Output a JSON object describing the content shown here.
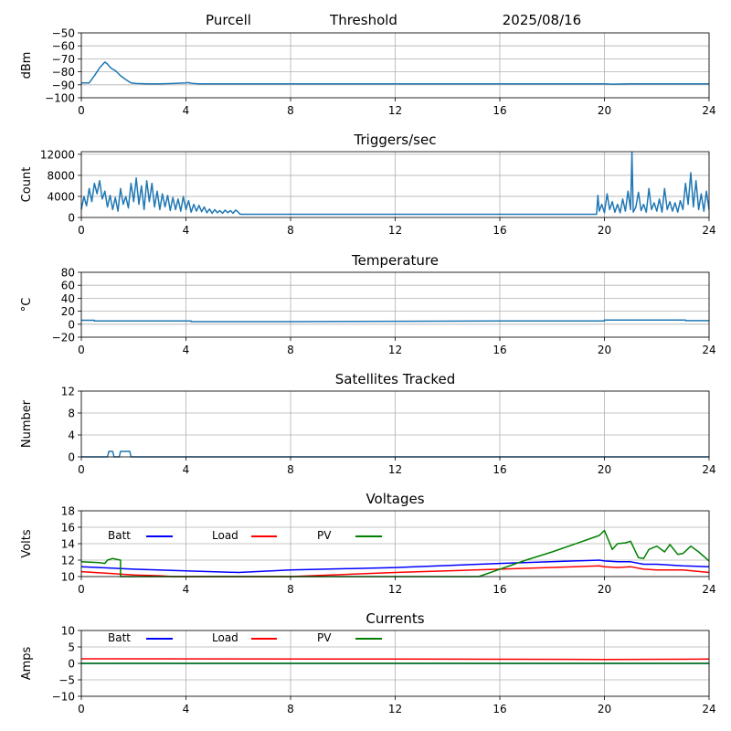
{
  "header": {
    "station": "Purcell",
    "mode": "Threshold",
    "date": "2025/08/16"
  },
  "legend": {
    "batt": {
      "label": "Batt",
      "color": "#0000ff"
    },
    "load": {
      "label": "Load",
      "color": "#ff0000"
    },
    "pv": {
      "label": "PV",
      "color": "#008000"
    }
  },
  "chart_data": [
    {
      "id": "signal",
      "type": "line",
      "title": "",
      "xlabel": "",
      "ylabel": "dBm",
      "xlim": [
        0,
        24
      ],
      "ylim": [
        -100,
        -50
      ],
      "xticks": [
        0,
        4,
        8,
        12,
        16,
        20,
        24
      ],
      "yticks": [
        -100,
        -90,
        -80,
        -70,
        -60,
        -50
      ],
      "grid": true,
      "series": [
        {
          "color": "#1f77b4",
          "x": [
            0,
            0.3,
            0.5,
            0.7,
            0.9,
            1.0,
            1.1,
            1.2,
            1.3,
            1.4,
            1.5,
            1.7,
            1.9,
            2.1,
            2.5,
            3.0,
            3.5,
            4.0,
            4.1,
            4.2,
            4.3,
            4.5,
            5.0,
            6.0,
            8.0,
            12.0,
            16.0,
            19.8,
            20.0,
            20.3,
            21.0,
            22.0,
            23.0,
            24.0
          ],
          "y": [
            -88.5,
            -88.5,
            -83,
            -77,
            -72.5,
            -74,
            -76.5,
            -78,
            -79,
            -81,
            -83,
            -86,
            -88.5,
            -89,
            -89.3,
            -89.3,
            -89,
            -88.5,
            -88.3,
            -88.8,
            -89,
            -89.3,
            -89.3,
            -89.2,
            -89.2,
            -89.2,
            -89.2,
            -89.2,
            -89.3,
            -89.5,
            -89.2,
            -89.3,
            -89.2,
            -89.2
          ]
        }
      ]
    },
    {
      "id": "triggers",
      "type": "line",
      "title": "Triggers/sec",
      "xlabel": "",
      "ylabel": "Count",
      "xlim": [
        0,
        24
      ],
      "ylim": [
        0,
        12500
      ],
      "xticks": [
        0,
        4,
        8,
        12,
        16,
        20,
        24
      ],
      "yticks": [
        0,
        4000,
        8000,
        12000
      ],
      "grid": true,
      "series": [
        {
          "color": "#1f77b4",
          "x": [
            0,
            0.1,
            0.2,
            0.3,
            0.4,
            0.5,
            0.6,
            0.7,
            0.8,
            0.9,
            1.0,
            1.1,
            1.2,
            1.3,
            1.4,
            1.5,
            1.6,
            1.7,
            1.8,
            1.9,
            2.0,
            2.1,
            2.2,
            2.3,
            2.4,
            2.5,
            2.6,
            2.7,
            2.8,
            2.9,
            3.0,
            3.1,
            3.2,
            3.3,
            3.4,
            3.5,
            3.6,
            3.7,
            3.8,
            3.9,
            4.0,
            4.1,
            4.2,
            4.3,
            4.4,
            4.5,
            4.6,
            4.7,
            4.8,
            4.9,
            5.0,
            5.1,
            5.2,
            5.3,
            5.4,
            5.5,
            5.6,
            5.7,
            5.8,
            5.9,
            6.0,
            6.05,
            6.1,
            8.0,
            12.0,
            16.0,
            19.7,
            19.75,
            19.8,
            19.9,
            20.0,
            20.1,
            20.2,
            20.3,
            20.4,
            20.5,
            20.6,
            20.7,
            20.8,
            20.9,
            21.0,
            21.05,
            21.1,
            21.2,
            21.3,
            21.4,
            21.5,
            21.6,
            21.7,
            21.8,
            21.9,
            22.0,
            22.1,
            22.2,
            22.3,
            22.4,
            22.5,
            22.6,
            22.7,
            22.8,
            22.9,
            23.0,
            23.1,
            23.2,
            23.3,
            23.4,
            23.5,
            23.6,
            23.7,
            23.8,
            23.9,
            24.0
          ],
          "y": [
            1500,
            4000,
            2200,
            5500,
            3000,
            6500,
            4500,
            7000,
            3500,
            5000,
            2000,
            4200,
            1500,
            3800,
            1200,
            5500,
            2500,
            4000,
            1800,
            6500,
            3000,
            7500,
            2500,
            6000,
            1500,
            7000,
            3000,
            6500,
            2000,
            5000,
            1500,
            4500,
            2000,
            4200,
            1300,
            3800,
            1500,
            3500,
            1200,
            4000,
            1500,
            3200,
            1000,
            2500,
            1200,
            2300,
            1100,
            2000,
            900,
            1600,
            800,
            1500,
            900,
            1300,
            800,
            1400,
            900,
            1300,
            800,
            1400,
            1000,
            700,
            600,
            600,
            600,
            600,
            600,
            4200,
            1200,
            2500,
            900,
            4500,
            1500,
            3000,
            1000,
            2500,
            900,
            3500,
            1200,
            5000,
            1500,
            12400,
            1000,
            2000,
            4800,
            1300,
            2500,
            1000,
            5500,
            1500,
            2800,
            1200,
            3500,
            1000,
            5500,
            1500,
            3000,
            1200,
            2800,
            1000,
            3200,
            1500,
            6500,
            2500,
            8500,
            2000,
            7000,
            1500,
            4500,
            1200,
            5000,
            1500
          ]
        }
      ]
    },
    {
      "id": "temperature",
      "type": "line",
      "title": "Temperature",
      "xlabel": "",
      "ylabel": "°C",
      "xlim": [
        0,
        24
      ],
      "ylim": [
        -20,
        80
      ],
      "xticks": [
        0,
        4,
        8,
        12,
        16,
        20,
        24
      ],
      "yticks": [
        -20,
        0,
        20,
        40,
        60,
        80
      ],
      "grid": true,
      "series": [
        {
          "color": "#1f77b4",
          "x": [
            0,
            0.5,
            0.5,
            4.2,
            4.2,
            8,
            12,
            16,
            20,
            20,
            23.1,
            23.1,
            24
          ],
          "y": [
            6,
            6,
            5,
            5,
            4,
            4,
            4.5,
            5,
            5,
            6.5,
            6.5,
            5.5,
            5.5
          ]
        }
      ]
    },
    {
      "id": "satellites",
      "type": "line",
      "title": "Satellites Tracked",
      "xlabel": "",
      "ylabel": "Number",
      "xlim": [
        0,
        24
      ],
      "ylim": [
        0,
        12
      ],
      "xticks": [
        0,
        4,
        8,
        12,
        16,
        20,
        24
      ],
      "yticks": [
        0,
        4,
        8,
        12
      ],
      "grid": true,
      "series": [
        {
          "color": "#1f77b4",
          "x": [
            0,
            1.0,
            1.05,
            1.2,
            1.25,
            1.45,
            1.5,
            1.85,
            1.9,
            24
          ],
          "y": [
            0,
            0,
            1,
            1,
            0,
            0,
            1,
            1,
            0,
            0
          ]
        }
      ]
    },
    {
      "id": "voltages",
      "type": "line",
      "title": "Voltages",
      "xlabel": "",
      "ylabel": "Volts",
      "xlim": [
        0,
        24
      ],
      "ylim": [
        10,
        18
      ],
      "xticks": [
        0,
        4,
        8,
        12,
        16,
        20,
        24
      ],
      "yticks": [
        10,
        12,
        14,
        16,
        18
      ],
      "grid": true,
      "series": [
        {
          "name": "Batt",
          "color": "#0000ff",
          "x": [
            0,
            2,
            4,
            6,
            8,
            12,
            16,
            19.8,
            20,
            20.5,
            21,
            21.5,
            22,
            23,
            24
          ],
          "y": [
            11.2,
            10.9,
            10.7,
            10.5,
            10.8,
            11.1,
            11.6,
            12.0,
            11.9,
            11.8,
            11.8,
            11.5,
            11.5,
            11.3,
            11.2
          ]
        },
        {
          "name": "Load",
          "color": "#ff0000",
          "x": [
            0,
            1,
            2,
            3,
            3.5,
            8,
            12,
            16,
            19.8,
            20,
            20.5,
            21,
            21.5,
            22,
            23,
            24
          ],
          "y": [
            10.6,
            10.4,
            10.2,
            10.1,
            10.0,
            10.0,
            10.5,
            10.9,
            11.3,
            11.2,
            11.1,
            11.2,
            10.9,
            10.8,
            10.8,
            10.5
          ]
        },
        {
          "name": "PV",
          "color": "#008000",
          "x": [
            0,
            0.7,
            0.9,
            1.0,
            1.2,
            1.5,
            1.5,
            15.2,
            16,
            17,
            18,
            19,
            19.8,
            20,
            20.3,
            20.5,
            20.8,
            21,
            21.3,
            21.5,
            21.7,
            22,
            22.3,
            22.5,
            22.8,
            23,
            23.3,
            23.6,
            24
          ],
          "y": [
            11.8,
            11.7,
            11.6,
            12.0,
            12.2,
            12.0,
            10.0,
            10.0,
            10.9,
            12.0,
            13.0,
            14.1,
            15.0,
            15.6,
            13.3,
            14.0,
            14.1,
            14.3,
            12.3,
            12.2,
            13.3,
            13.7,
            13.0,
            13.9,
            12.7,
            12.8,
            13.7,
            13.0,
            11.9
          ]
        }
      ]
    },
    {
      "id": "currents",
      "type": "line",
      "title": "Currents",
      "xlabel": "",
      "ylabel": "Amps",
      "xlim": [
        0,
        24
      ],
      "ylim": [
        -10,
        10
      ],
      "xticks": [
        0,
        4,
        8,
        12,
        16,
        20,
        24
      ],
      "yticks": [
        -10,
        -5,
        0,
        5,
        10
      ],
      "grid": true,
      "series": [
        {
          "name": "Batt",
          "color": "#0000ff",
          "x": [
            0,
            24
          ],
          "y": [
            0.0,
            0.0
          ]
        },
        {
          "name": "Load",
          "color": "#ff0000",
          "x": [
            0,
            12,
            20,
            24
          ],
          "y": [
            1.4,
            1.3,
            1.2,
            1.3
          ]
        },
        {
          "name": "PV",
          "color": "#008000",
          "x": [
            0,
            24
          ],
          "y": [
            0.0,
            0.0
          ]
        }
      ]
    }
  ]
}
